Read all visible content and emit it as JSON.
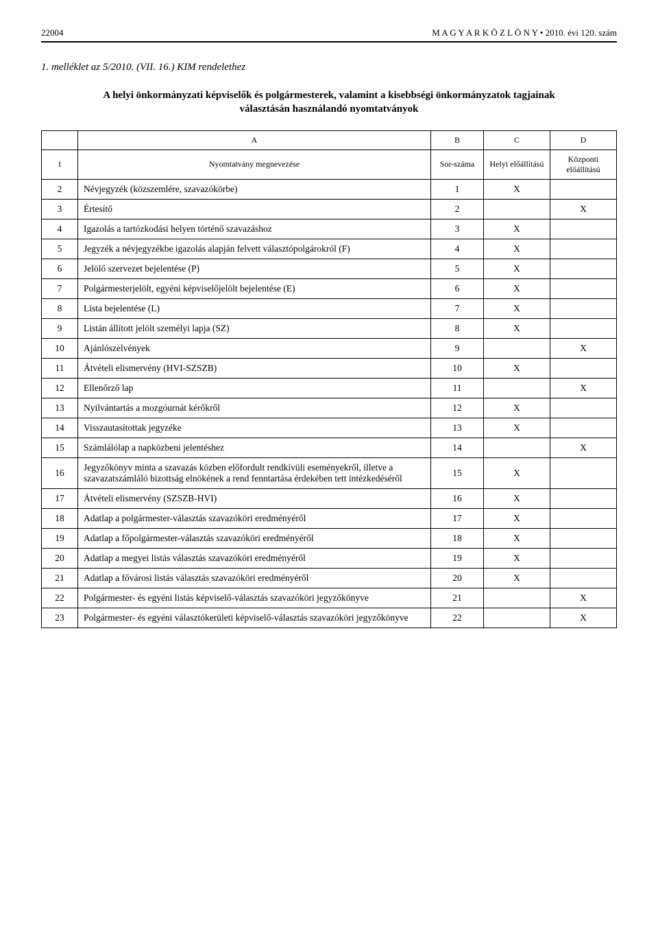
{
  "header": {
    "page_number": "22004",
    "journal": "M A G Y A R   K Ö Z L Ö N Y",
    "issue": "2010. évi 120. szám",
    "bullet": "•"
  },
  "attachment_line": "1. melléklet az 5/2010. (VII. 16.) KIM rendelethez",
  "title": "A helyi önkormányzati képviselők és polgármesterek, valamint a kisebbségi önkormányzatok tagjainak választásán használandó nyomtatványok",
  "columns": {
    "a": "A",
    "b": "B",
    "c": "C",
    "d": "D",
    "row_label": "1",
    "name": "Nyomtatvány megnevezése",
    "sor": "Sor-száma",
    "helyi": "Helyi előállítású",
    "kozponti": "Központi előállítású"
  },
  "rows": [
    {
      "n": "2",
      "name": "Névjegyzék (közszemlére, szavazókörbe)",
      "sor": "1",
      "helyi": "X",
      "kozp": ""
    },
    {
      "n": "3",
      "name": "Értesítő",
      "sor": "2",
      "helyi": "",
      "kozp": "X"
    },
    {
      "n": "4",
      "name": "Igazolás a tartózkodási helyen történő szavazáshoz",
      "sor": "3",
      "helyi": "X",
      "kozp": ""
    },
    {
      "n": "5",
      "name": "Jegyzék a névjegyzékbe igazolás alapján felvett választópolgárokról (F)",
      "sor": "4",
      "helyi": "X",
      "kozp": ""
    },
    {
      "n": "6",
      "name": "Jelölő szervezet bejelentése (P)",
      "sor": "5",
      "helyi": "X",
      "kozp": ""
    },
    {
      "n": "7",
      "name": "Polgármesterjelölt, egyéni képviselőjelölt bejelentése (E)",
      "sor": "6",
      "helyi": "X",
      "kozp": ""
    },
    {
      "n": "8",
      "name": "Lista bejelentése (L)",
      "sor": "7",
      "helyi": "X",
      "kozp": ""
    },
    {
      "n": "9",
      "name": "Listán állított jelölt személyi lapja (SZ)",
      "sor": "8",
      "helyi": "X",
      "kozp": ""
    },
    {
      "n": "10",
      "name": "Ajánlószelvények",
      "sor": "9",
      "helyi": "",
      "kozp": "X"
    },
    {
      "n": "11",
      "name": "Átvételi elismervény (HVI-SZSZB)",
      "sor": "10",
      "helyi": "X",
      "kozp": ""
    },
    {
      "n": "12",
      "name": "Ellenőrző lap",
      "sor": "11",
      "helyi": "",
      "kozp": "X"
    },
    {
      "n": "13",
      "name": "Nyilvántartás a mozgóurnát kérőkről",
      "sor": "12",
      "helyi": "X",
      "kozp": ""
    },
    {
      "n": "14",
      "name": "Visszautasítottak jegyzéke",
      "sor": "13",
      "helyi": "X",
      "kozp": ""
    },
    {
      "n": "15",
      "name": "Számlálólap a napközbeni jelentéshez",
      "sor": "14",
      "helyi": "",
      "kozp": "X"
    },
    {
      "n": "16",
      "name": "Jegyzőkönyv minta a szavazás közben előfordult rendkívüli eseményekről, illetve a szavazatszámláló bizottság elnökének a rend fenntartása érdekében tett intézkedéséről",
      "sor": "15",
      "helyi": "X",
      "kozp": ""
    },
    {
      "n": "17",
      "name": "Átvételi elismervény (SZSZB-HVI)",
      "sor": "16",
      "helyi": "X",
      "kozp": ""
    },
    {
      "n": "18",
      "name": "Adatlap a polgármester-választás szavazóköri eredményéről",
      "sor": "17",
      "helyi": "X",
      "kozp": ""
    },
    {
      "n": "19",
      "name": "Adatlap a főpolgármester-választás szavazóköri eredményéről",
      "sor": "18",
      "helyi": "X",
      "kozp": ""
    },
    {
      "n": "20",
      "name": "Adatlap a megyei listás választás szavazóköri eredményéről",
      "sor": "19",
      "helyi": "X",
      "kozp": ""
    },
    {
      "n": "21",
      "name": "Adatlap a fővárosi listás választás szavazóköri eredményéről",
      "sor": "20",
      "helyi": "X",
      "kozp": ""
    },
    {
      "n": "22",
      "name": "Polgármester- és egyéni listás képviselő-választás szavazóköri jegyzőkönyve",
      "sor": "21",
      "helyi": "",
      "kozp": "X"
    },
    {
      "n": "23",
      "name": "Polgármester- és egyéni választókerületi képviselő-választás szavazóköri jegyzőkönyve",
      "sor": "22",
      "helyi": "",
      "kozp": "X"
    }
  ]
}
